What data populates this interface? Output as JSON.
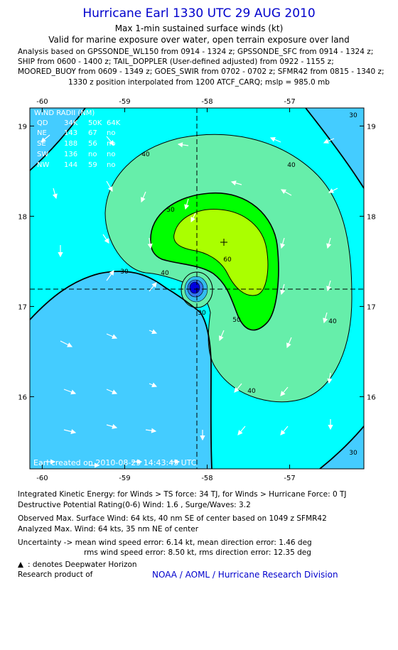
{
  "header": {
    "title": "Hurricane Earl 1330 UTC 29 AUG 2010",
    "subtitle1": "Max 1-min sustained surface winds (kt)",
    "subtitle2": "Valid for marine exposure over water, open terrain exposure over land",
    "analysis_lines": [
      "Analysis based on GPSSONDE_WL150 from 0914 - 1324 z; GPSSONDE_SFC from 0914 - 1324 z;",
      "SHIP from 0600 - 1400 z; TAIL_DOPPLER (User-defined adjusted) from 0922 - 1155 z;",
      "MOORED_BUOY from 0609 - 1349 z; GOES_SWIR from 0702 - 0702 z; SFMR42 from 0815 - 1340 z;"
    ],
    "position_line": "1330 z position interpolated from 1200 ATCF_CARQ; mslp = 985.0 mb"
  },
  "map": {
    "lon_labels": [
      "-60",
      "-59",
      "-58",
      "-57"
    ],
    "lat_labels": [
      "19",
      "18",
      "17",
      "16"
    ],
    "lon_range": [
      -60.15,
      -56.1
    ],
    "lat_range": [
      15.2,
      19.2
    ],
    "center": {
      "lon": -58.1,
      "lat": 17.17
    },
    "max_wind_marker": {
      "lon": -57.75,
      "lat": 17.7
    },
    "contour_labels": [
      "30",
      "30",
      "40",
      "40",
      "40",
      "40",
      "40",
      "50",
      "50",
      "60",
      "30",
      "30"
    ],
    "colors": {
      "background": "#00ffff",
      "level_30": "#33ddee",
      "level_40": "#66eeaa",
      "level_50": "#00ff00",
      "level_60": "#aaff00",
      "eye": "#0000dd",
      "outside_30": "#44ccff"
    },
    "wind_radii": {
      "header": [
        "QD",
        "34K",
        "50K",
        "64K"
      ],
      "title": "WIND RADII (NM)",
      "rows": [
        [
          "NE",
          "143",
          "67",
          "no"
        ],
        [
          "SE",
          "188",
          "56",
          "no"
        ],
        [
          "SW",
          "136",
          "no",
          "no"
        ],
        [
          "NW",
          "144",
          "59",
          "no"
        ]
      ]
    },
    "credit": "Earl  created on 2010-08-29 14:43:45 UTC"
  },
  "footer": {
    "ike": "Integrated Kinetic Energy:  for Winds > TS force: 34 TJ,  for Winds > Hurricane Force: 0 TJ",
    "dpr": "Destructive Potential Rating(0-6)   Wind: 1.6 , Surge/Waves: 3.2",
    "obs_max": "Observed Max. Surface Wind: 64 kts, 40 nm SE of center based on 1049 z SFMR42",
    "ana_max": "Analyzed Max. Wind: 64 kts, 35 nm NE of center",
    "uncert1": "Uncertainty -> mean wind speed error: 6.14 kt,   mean direction error: 1.46 deg",
    "uncert2": "rms wind speed error: 8.50 kt,   rms direction error: 12.35 deg",
    "deepwater": ": denotes Deepwater Horizon",
    "research": "Research product of",
    "noaa": "NOAA / AOML / Hurricane Research Division"
  }
}
